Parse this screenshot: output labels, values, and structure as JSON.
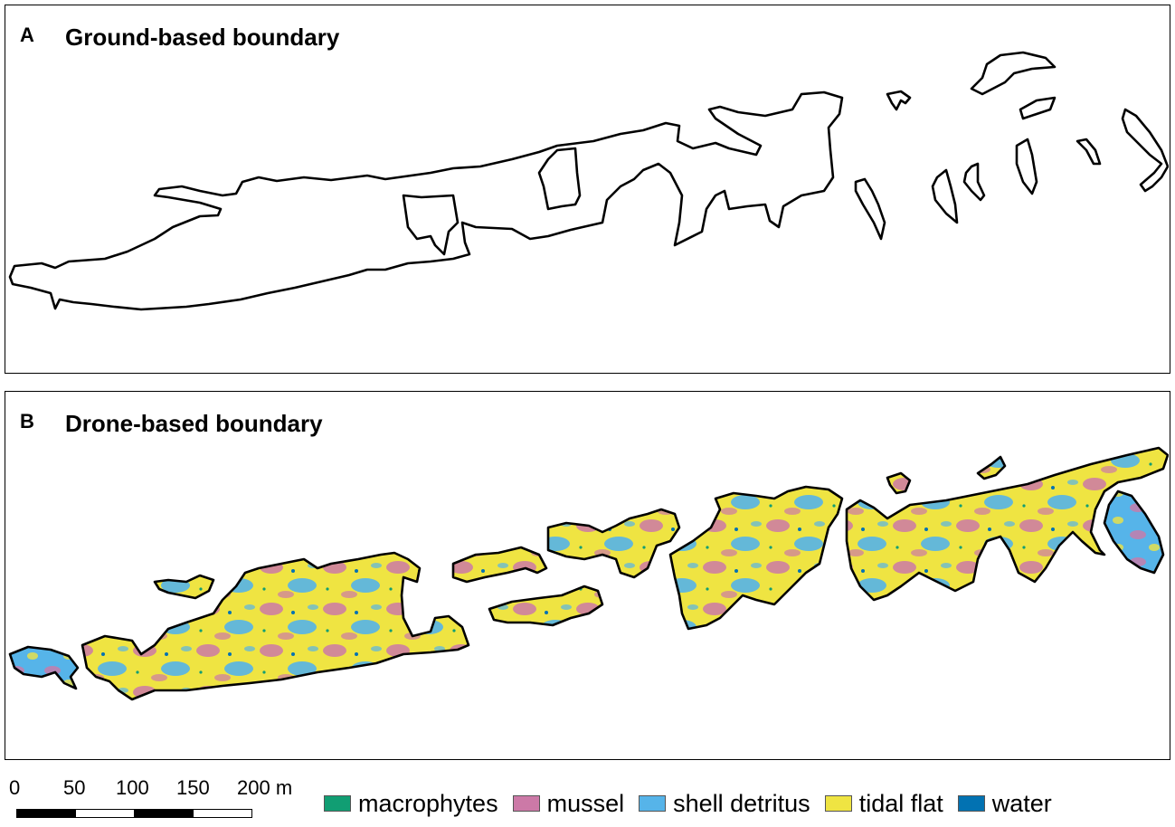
{
  "panel_a": {
    "letter": "A",
    "title": "Ground-based boundary"
  },
  "panel_b": {
    "letter": "B",
    "title": "Drone-based boundary"
  },
  "scale_bar": {
    "ticks": [
      "0",
      "50",
      "100",
      "150",
      "200 m"
    ]
  },
  "legend": [
    {
      "label": "macrophytes",
      "color": "#119e73"
    },
    {
      "label": "mussel",
      "color": "#cc79a7"
    },
    {
      "label": "shell detritus",
      "color": "#56b4e9"
    },
    {
      "label": "tidal flat",
      "color": "#efe442"
    },
    {
      "label": "water",
      "color": "#0272b2"
    }
  ]
}
